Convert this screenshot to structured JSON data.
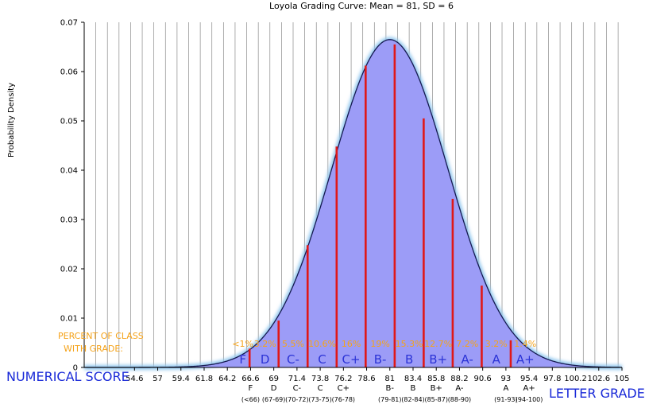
{
  "chart_data": {
    "type": "area",
    "title": "Loyola Grading Curve: Mean = 81, SD = 6",
    "ylabel": "Probability Density",
    "mean": 81,
    "sd": 6,
    "xlim": [
      49.4,
      105
    ],
    "ylim": [
      0,
      0.07
    ],
    "yticks": [
      "0",
      "0.01",
      "0.02",
      "0.03",
      "0.04",
      "0.05",
      "0.06",
      "0.07"
    ],
    "grid_step": 1.2,
    "xticks": [
      {
        "x": 54.6,
        "label": "54.6"
      },
      {
        "x": 57.0,
        "label": "57"
      },
      {
        "x": 59.4,
        "label": "59.4"
      },
      {
        "x": 61.8,
        "label": "61.8"
      },
      {
        "x": 64.2,
        "label": "64.2"
      },
      {
        "x": 66.6,
        "label": "66.6",
        "grade": "F",
        "range": "(<66)"
      },
      {
        "x": 69.0,
        "label": "69",
        "grade": "D",
        "range": "(67-69)"
      },
      {
        "x": 71.4,
        "label": "71.4",
        "grade": "C-",
        "range": "(70-72)"
      },
      {
        "x": 73.8,
        "label": "73.8",
        "grade": "C",
        "range": "(73-75)"
      },
      {
        "x": 76.2,
        "label": "76.2",
        "grade": "C+",
        "range": "(76-78)"
      },
      {
        "x": 78.6,
        "label": "78.6"
      },
      {
        "x": 81.0,
        "label": "81",
        "grade": "B-",
        "range": "(79-81)"
      },
      {
        "x": 83.4,
        "label": "83.4",
        "grade": "B",
        "range": "(82-84)"
      },
      {
        "x": 85.8,
        "label": "85.8",
        "grade": "B+",
        "range": "(85-87)"
      },
      {
        "x": 88.2,
        "label": "88.2",
        "grade": "A-",
        "range": "(88-90)"
      },
      {
        "x": 90.6,
        "label": "90.6"
      },
      {
        "x": 93.0,
        "label": "93",
        "grade": "A",
        "range": "(91-93)"
      },
      {
        "x": 95.4,
        "label": "95.4",
        "grade": "A+",
        "range": "(94-100)"
      },
      {
        "x": 97.8,
        "label": "97.8"
      },
      {
        "x": 100.2,
        "label": "100.2"
      },
      {
        "x": 102.6,
        "label": "102.6"
      },
      {
        "x": 105.0,
        "label": "105"
      }
    ],
    "cutoffs": [
      {
        "x": 66.5,
        "y": 0.0038
      },
      {
        "x": 69.5,
        "y": 0.0095
      },
      {
        "x": 72.5,
        "y": 0.0248
      },
      {
        "x": 75.5,
        "y": 0.0448
      },
      {
        "x": 78.5,
        "y": 0.0612
      },
      {
        "x": 81.5,
        "y": 0.0655
      },
      {
        "x": 84.5,
        "y": 0.0505
      },
      {
        "x": 87.5,
        "y": 0.0342
      },
      {
        "x": 90.5,
        "y": 0.0166
      },
      {
        "x": 93.5,
        "y": 0.0055
      }
    ],
    "bands": [
      {
        "letter": "F",
        "percent": "<1%",
        "x": 65.8
      },
      {
        "letter": "D",
        "percent": "3.2%",
        "x": 68.1
      },
      {
        "letter": "C-",
        "percent": "5.5%",
        "x": 71.0
      },
      {
        "letter": "C",
        "percent": "10.6%",
        "x": 74.0
      },
      {
        "letter": "C+",
        "percent": "16%",
        "x": 77.0
      },
      {
        "letter": "B-",
        "percent": "19%",
        "x": 80.0
      },
      {
        "letter": "B",
        "percent": "15.3%",
        "x": 83.0
      },
      {
        "letter": "B+",
        "percent": "12.7%",
        "x": 86.0
      },
      {
        "letter": "A-",
        "percent": "7.2%",
        "x": 89.0
      },
      {
        "letter": "A",
        "percent": "3.2%",
        "x": 92.0
      },
      {
        "letter": "A+",
        "percent": "1.4%",
        "x": 95.0
      }
    ],
    "percent_title": [
      "PERCENT OF CLASS",
      "WITH GRADE:"
    ],
    "corner_left": "NUMERICAL SCORE",
    "corner_right": "LETTER GRADE",
    "colors": {
      "fill": "#9c9cf7",
      "curve": "#151a50",
      "glow": "#8fc6ee",
      "cutoff": "#e01818",
      "grid": "#8a8a8a",
      "band_letter": "#2b33d6",
      "percent": "#f5a31a",
      "corner_text": "#1a2ad8"
    }
  }
}
